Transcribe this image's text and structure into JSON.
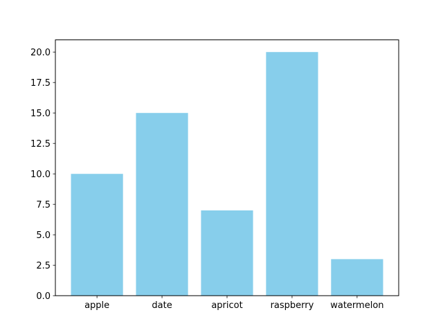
{
  "figure": {
    "background": "#ffffff"
  },
  "chart_data": {
    "type": "bar",
    "title": "",
    "xlabel": "",
    "ylabel": "",
    "categories": [
      "apple",
      "date",
      "apricot",
      "raspberry",
      "watermelon"
    ],
    "values": [
      10,
      15,
      7,
      20,
      3
    ],
    "bar_color": "#87CEEB",
    "axis_color": "#000000",
    "text_color": "#000000",
    "ylim": [
      0,
      21
    ],
    "yticks": [
      0.0,
      2.5,
      5.0,
      7.5,
      10.0,
      12.5,
      15.0,
      17.5,
      20.0
    ],
    "ytick_labels": [
      "0.0",
      "2.5",
      "5.0",
      "7.5",
      "10.0",
      "12.5",
      "15.0",
      "17.5",
      "20.0"
    ],
    "bar_width_data_units": 0.8,
    "grid": false,
    "legend_position": "none"
  }
}
